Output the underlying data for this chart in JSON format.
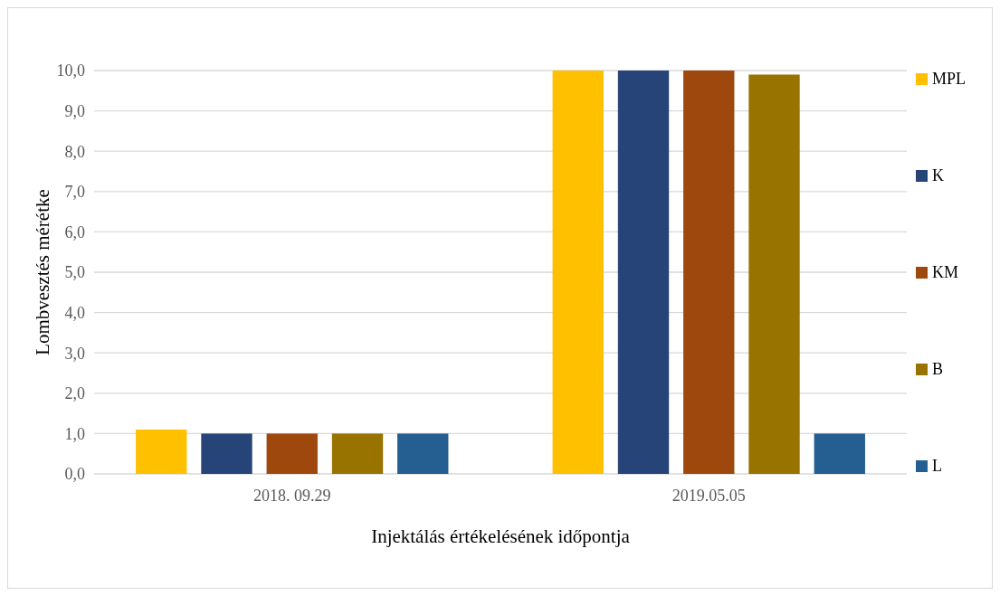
{
  "chart_data": {
    "type": "bar",
    "xlabel": "Injektálás értékelésének időpontja",
    "ylabel": "Lombvesztés mérétke",
    "categories": [
      "2018. 09.29",
      "2019.05.05"
    ],
    "series": [
      {
        "name": "MPL",
        "color": "#ffc000",
        "values": [
          1.1,
          10.0
        ]
      },
      {
        "name": "K",
        "color": "#264478",
        "values": [
          1.0,
          10.0
        ]
      },
      {
        "name": "KM",
        "color": "#9e480e",
        "values": [
          1.0,
          10.0
        ]
      },
      {
        "name": "B",
        "color": "#997300",
        "values": [
          1.0,
          9.9
        ]
      },
      {
        "name": "L",
        "color": "#255e91",
        "values": [
          1.0,
          1.0
        ]
      }
    ],
    "ylim": [
      0,
      10
    ],
    "yticks": [
      {
        "value": 0,
        "label": "0,0"
      },
      {
        "value": 1,
        "label": "1,0"
      },
      {
        "value": 2,
        "label": "2,0"
      },
      {
        "value": 3,
        "label": "3,0"
      },
      {
        "value": 4,
        "label": "4,0"
      },
      {
        "value": 5,
        "label": "5,0"
      },
      {
        "value": 6,
        "label": "6,0"
      },
      {
        "value": 7,
        "label": "7,0"
      },
      {
        "value": 8,
        "label": "8,0"
      },
      {
        "value": 9,
        "label": "9,0"
      },
      {
        "value": 10,
        "label": "10,0"
      }
    ],
    "grid": "y",
    "legend": "right"
  }
}
